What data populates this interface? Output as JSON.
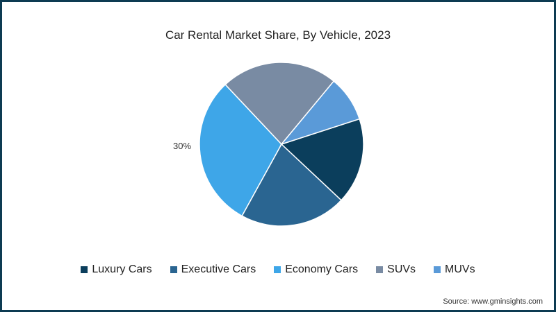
{
  "chart_data": {
    "type": "pie",
    "title": "Car Rental Market Share, By Vehicle, 2023",
    "categories": [
      "Luxury Cars",
      "Executive Cars",
      "Economy Cars",
      "SUVs",
      "MUVs"
    ],
    "values": [
      17,
      21,
      30,
      23,
      9
    ],
    "colors": [
      "#0b3e5c",
      "#2a6591",
      "#3ea6e8",
      "#798ba3",
      "#5a9ad8"
    ],
    "data_labels": [
      {
        "category": "Economy Cars",
        "text": "30%"
      }
    ],
    "legend_placement": "bottom"
  },
  "source": "Source: www.gminsights.com"
}
